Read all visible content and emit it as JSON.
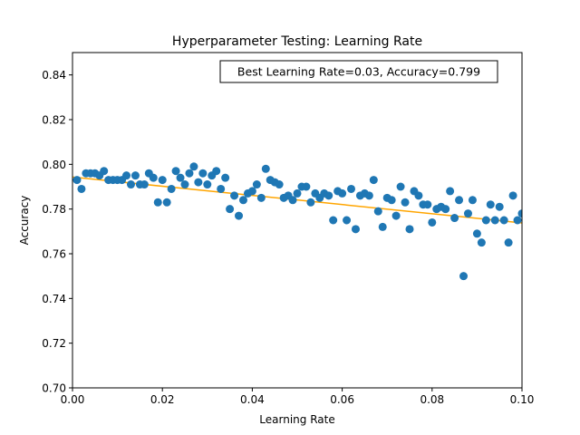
{
  "chart_data": {
    "type": "scatter",
    "title": "Hyperparameter Testing: Learning Rate",
    "xlabel": "Learning Rate",
    "ylabel": "Accuracy",
    "xlim": [
      0,
      0.1
    ],
    "ylim": [
      0.7,
      0.85
    ],
    "xticks": [
      "0.00",
      "0.02",
      "0.04",
      "0.06",
      "0.08",
      "0.10"
    ],
    "yticks": [
      "0.70",
      "0.72",
      "0.74",
      "0.76",
      "0.78",
      "0.80",
      "0.82",
      "0.84"
    ],
    "grid": false,
    "annotation": "Best Learning Rate=0.03, Accuracy=0.799",
    "annotation_position": "top-right",
    "colors": {
      "points": "#1f77b4",
      "trend": "#ffa500"
    },
    "trend_line": {
      "x": [
        0.0,
        0.1
      ],
      "y": [
        0.7943,
        0.7738
      ]
    },
    "points": {
      "x": [
        0.001,
        0.002,
        0.003,
        0.004,
        0.005,
        0.006,
        0.007,
        0.008,
        0.009,
        0.01,
        0.011,
        0.012,
        0.013,
        0.014,
        0.015,
        0.016,
        0.017,
        0.018,
        0.019,
        0.02,
        0.021,
        0.022,
        0.023,
        0.024,
        0.025,
        0.026,
        0.027,
        0.028,
        0.029,
        0.03,
        0.031,
        0.032,
        0.033,
        0.034,
        0.035,
        0.036,
        0.037,
        0.038,
        0.039,
        0.04,
        0.041,
        0.042,
        0.043,
        0.044,
        0.045,
        0.046,
        0.047,
        0.048,
        0.049,
        0.05,
        0.051,
        0.052,
        0.053,
        0.054,
        0.055,
        0.056,
        0.057,
        0.058,
        0.059,
        0.06,
        0.061,
        0.062,
        0.063,
        0.064,
        0.065,
        0.066,
        0.067,
        0.068,
        0.069,
        0.07,
        0.071,
        0.072,
        0.073,
        0.074,
        0.075,
        0.076,
        0.077,
        0.078,
        0.079,
        0.08,
        0.081,
        0.082,
        0.083,
        0.084,
        0.085,
        0.086,
        0.087,
        0.088,
        0.089,
        0.09,
        0.091,
        0.092,
        0.093,
        0.094,
        0.095,
        0.096,
        0.097,
        0.098,
        0.099,
        0.1
      ],
      "y": [
        0.793,
        0.789,
        0.796,
        0.796,
        0.796,
        0.795,
        0.797,
        0.793,
        0.793,
        0.793,
        0.793,
        0.795,
        0.791,
        0.795,
        0.791,
        0.791,
        0.796,
        0.794,
        0.783,
        0.793,
        0.783,
        0.789,
        0.797,
        0.794,
        0.791,
        0.796,
        0.799,
        0.792,
        0.796,
        0.791,
        0.795,
        0.797,
        0.789,
        0.794,
        0.78,
        0.786,
        0.777,
        0.784,
        0.787,
        0.788,
        0.791,
        0.785,
        0.798,
        0.793,
        0.792,
        0.791,
        0.785,
        0.786,
        0.784,
        0.787,
        0.79,
        0.79,
        0.783,
        0.787,
        0.785,
        0.787,
        0.786,
        0.775,
        0.788,
        0.787,
        0.775,
        0.789,
        0.771,
        0.786,
        0.787,
        0.786,
        0.793,
        0.779,
        0.772,
        0.785,
        0.784,
        0.777,
        0.79,
        0.783,
        0.771,
        0.788,
        0.786,
        0.782,
        0.782,
        0.774,
        0.78,
        0.781,
        0.78,
        0.788,
        0.776,
        0.784,
        0.75,
        0.778,
        0.784,
        0.769,
        0.765,
        0.775,
        0.782,
        0.775,
        0.781,
        0.775,
        0.765,
        0.786,
        0.775,
        0.778
      ]
    }
  }
}
